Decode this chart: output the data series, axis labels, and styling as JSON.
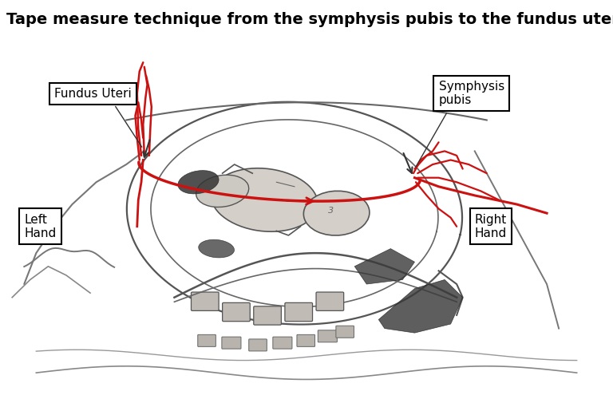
{
  "title": "Tape measure technique from the symphysis pubis to the fundus uteri",
  "title_fontsize": 14,
  "title_fontweight": "bold",
  "bg_color": "#ffffff",
  "illustration_bg": "#e8e8e8",
  "sketch_color": "#555555",
  "sketch_color2": "#333333",
  "red_color": "#cc1111",
  "box_color": "black",
  "box_facecolor": "white",
  "text_color": "black",
  "text_fontsize": 11,
  "label_fundus": "Fundus Uteri",
  "label_symphysis": "Symphysis\npubis",
  "label_left": "Left\nHand",
  "label_right": "Right\nHand"
}
